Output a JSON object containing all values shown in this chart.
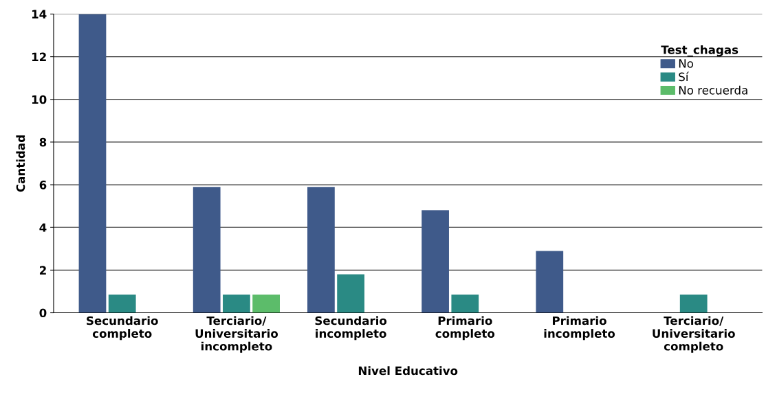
{
  "chart_data": {
    "type": "bar",
    "xlabel": "Nivel Educativo",
    "ylabel": "Cantidad",
    "legend_title": "Test_chagas",
    "categories": [
      "Secundario\ncompleto",
      "Terciario/\nUniversitario\nincompleto",
      "Secundario\nincompleto",
      "Primario\ncompleto",
      "Primario\nincompleto",
      "Terciario/\nUniversitario\ncompleto"
    ],
    "series": [
      {
        "name": "No",
        "color": "#3f5a8a",
        "values": [
          14,
          5.9,
          5.9,
          4.8,
          2.9,
          null
        ]
      },
      {
        "name": "Sí",
        "color": "#2a8a84",
        "values": [
          0.85,
          0.85,
          1.8,
          0.85,
          null,
          0.85
        ]
      },
      {
        "name": "No recuerda",
        "color": "#5cbc6a",
        "values": [
          null,
          0.85,
          null,
          null,
          null,
          null
        ]
      }
    ],
    "ylim": [
      0,
      14
    ],
    "yticks": [
      0,
      2,
      4,
      6,
      8,
      10,
      12,
      14
    ],
    "grid": "y",
    "legend": "top right"
  }
}
